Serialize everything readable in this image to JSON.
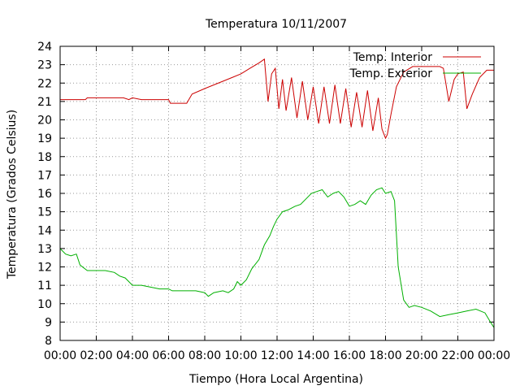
{
  "chart_data": {
    "type": "line",
    "title": "Temperatura 10/11/2007",
    "xlabel": "Tiempo (Hora Local Argentina)",
    "ylabel": "Temperatura (Grados Celsius)",
    "xlim": [
      0,
      24
    ],
    "ylim": [
      8,
      24
    ],
    "x_ticks": [
      "00:00",
      "02:00",
      "04:00",
      "06:00",
      "08:00",
      "10:00",
      "12:00",
      "14:00",
      "16:00",
      "18:00",
      "20:00",
      "22:00",
      "00:00"
    ],
    "y_ticks": [
      "8",
      "9",
      "10",
      "11",
      "12",
      "13",
      "14",
      "15",
      "16",
      "17",
      "18",
      "19",
      "20",
      "21",
      "22",
      "23",
      "24"
    ],
    "grid": true,
    "legend_position": "top-right",
    "series": [
      {
        "name": "Temp. Interior",
        "color": "#cc0000",
        "x": [
          0,
          1.4,
          1.5,
          2,
          3,
          3.5,
          3.8,
          4,
          4.5,
          5,
          6,
          6.1,
          7,
          7.3,
          8,
          8.5,
          9,
          9.5,
          10,
          10.5,
          11,
          11.3,
          11.5,
          11.7,
          11.9,
          12.1,
          12.3,
          12.5,
          12.8,
          13.1,
          13.4,
          13.7,
          14.0,
          14.3,
          14.6,
          14.9,
          15.2,
          15.5,
          15.8,
          16.1,
          16.4,
          16.7,
          17.0,
          17.3,
          17.6,
          17.8,
          18.0,
          18.1,
          18.3,
          18.6,
          19.0,
          19.5,
          20,
          20.5,
          21,
          21.2,
          21.5,
          21.8,
          22.0,
          22.3,
          22.5,
          22.8,
          23.2,
          23.6,
          24
        ],
        "y": [
          21.1,
          21.1,
          21.2,
          21.2,
          21.2,
          21.2,
          21.1,
          21.2,
          21.1,
          21.1,
          21.1,
          20.9,
          20.9,
          21.4,
          21.7,
          21.9,
          22.1,
          22.3,
          22.5,
          22.8,
          23.1,
          23.3,
          21.0,
          22.5,
          22.8,
          20.6,
          22.2,
          20.5,
          22.3,
          20.1,
          22.1,
          20.0,
          21.8,
          19.8,
          21.8,
          19.8,
          21.9,
          19.8,
          21.7,
          19.6,
          21.5,
          19.6,
          21.6,
          19.4,
          21.2,
          19.5,
          19.0,
          19.2,
          20.3,
          21.8,
          22.6,
          22.9,
          22.9,
          22.9,
          22.9,
          22.8,
          21.0,
          22.2,
          22.5,
          22.6,
          20.6,
          21.4,
          22.3,
          22.7,
          22.7
        ]
      },
      {
        "name": "Temp. Exterior",
        "color": "#00b000",
        "x": [
          0,
          0.3,
          0.6,
          0.9,
          1.1,
          1.5,
          2,
          2.5,
          3,
          3.3,
          3.6,
          4,
          4.5,
          5,
          5.5,
          6,
          6.2,
          6.5,
          7,
          7.5,
          8,
          8.2,
          8.5,
          9,
          9.3,
          9.6,
          9.8,
          10,
          10.3,
          10.6,
          11,
          11.3,
          11.6,
          11.8,
          12,
          12.3,
          12.6,
          13,
          13.3,
          13.6,
          13.9,
          14.2,
          14.5,
          14.8,
          15.1,
          15.4,
          15.7,
          16,
          16.3,
          16.6,
          16.9,
          17.2,
          17.5,
          17.8,
          18,
          18.3,
          18.5,
          18.7,
          19,
          19.3,
          19.6,
          20,
          20.5,
          21,
          21.5,
          22,
          22.5,
          23,
          23.5,
          23.8,
          24
        ],
        "y": [
          13.0,
          12.7,
          12.6,
          12.7,
          12.1,
          11.8,
          11.8,
          11.8,
          11.7,
          11.5,
          11.4,
          11.0,
          11.0,
          10.9,
          10.8,
          10.8,
          10.7,
          10.7,
          10.7,
          10.7,
          10.6,
          10.4,
          10.6,
          10.7,
          10.6,
          10.8,
          11.2,
          11.0,
          11.3,
          11.9,
          12.4,
          13.2,
          13.7,
          14.2,
          14.6,
          15.0,
          15.1,
          15.3,
          15.4,
          15.7,
          16.0,
          16.1,
          16.2,
          15.8,
          16.0,
          16.1,
          15.8,
          15.3,
          15.4,
          15.6,
          15.4,
          15.9,
          16.2,
          16.3,
          16.0,
          16.1,
          15.6,
          12.0,
          10.2,
          9.8,
          9.9,
          9.8,
          9.6,
          9.3,
          9.4,
          9.5,
          9.6,
          9.7,
          9.5,
          9.0,
          8.7
        ]
      }
    ]
  }
}
